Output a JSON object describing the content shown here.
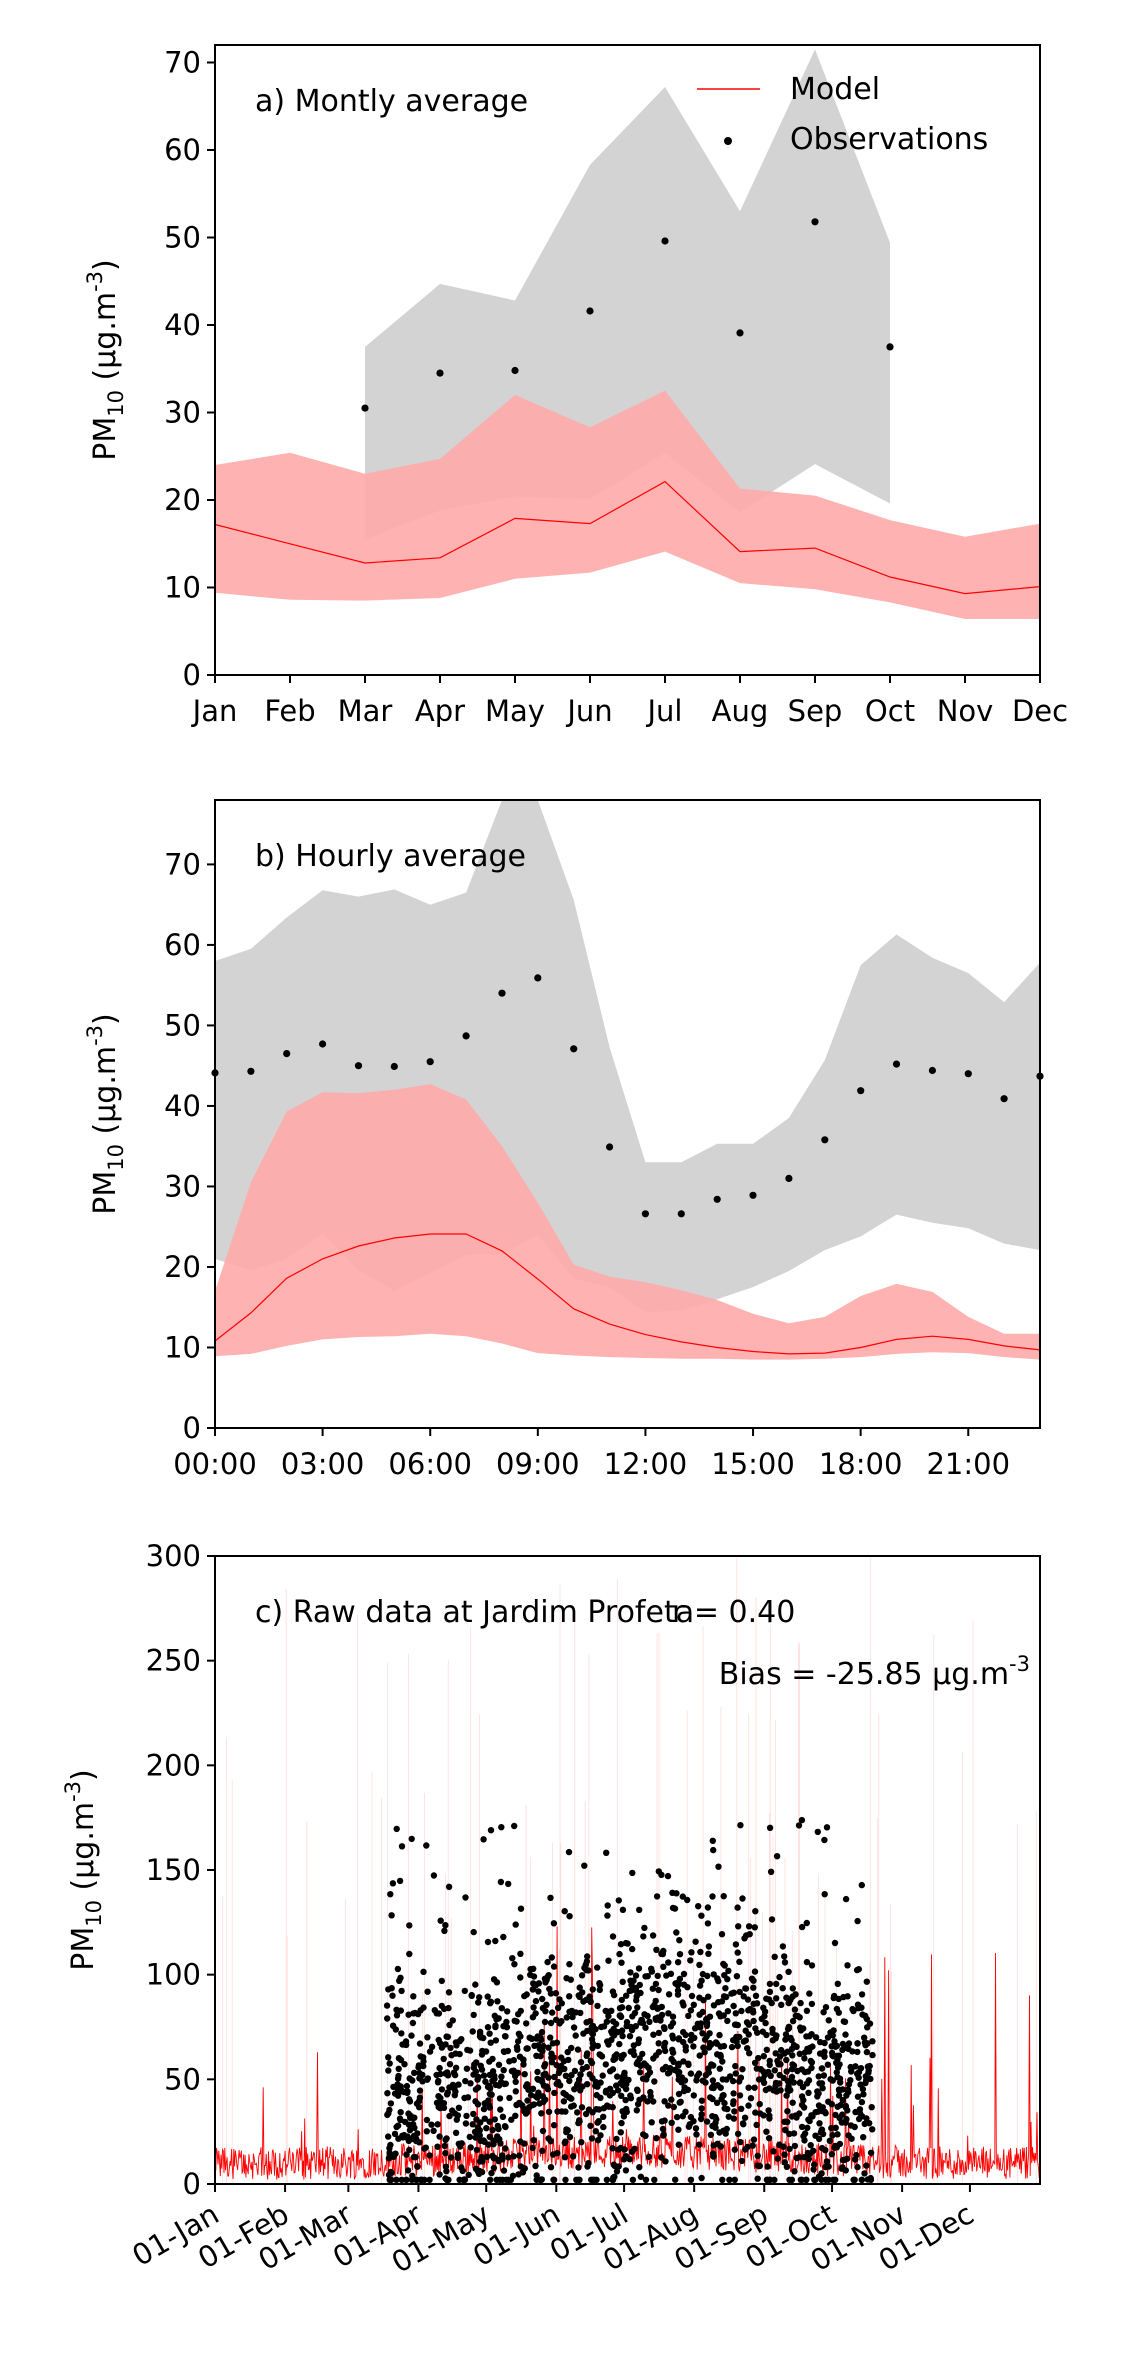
{
  "chart_data": [
    {
      "type": "line",
      "annotation": "a) Montly average",
      "ylabel": "PM_{10} (µg.m^{-3})",
      "ylim": [
        0,
        72
      ],
      "yticks": [
        0,
        10,
        20,
        30,
        40,
        50,
        60,
        70
      ],
      "categories": [
        "Jan",
        "Feb",
        "Mar",
        "Apr",
        "May",
        "Jun",
        "Jul",
        "Aug",
        "Sep",
        "Oct",
        "Nov",
        "Dec"
      ],
      "legend": {
        "placement": "top-right",
        "model": "Model",
        "observations": "Observations"
      },
      "series": [
        {
          "name": "Model",
          "kind": "line",
          "color": "#ff0000",
          "x": [
            0,
            1,
            2,
            3,
            4,
            5,
            6,
            7,
            8,
            9,
            10,
            11
          ],
          "values": [
            17.2,
            15.0,
            12.8,
            13.4,
            17.9,
            17.3,
            22.1,
            14.1,
            14.5,
            11.2,
            9.3,
            10.1
          ],
          "band_upper": [
            24.0,
            25.4,
            23.0,
            24.7,
            32.0,
            28.3,
            32.5,
            21.3,
            20.5,
            17.7,
            15.8,
            17.3
          ],
          "band_lower": [
            9.4,
            8.6,
            8.5,
            8.8,
            11.0,
            11.7,
            14.1,
            10.5,
            9.8,
            8.3,
            6.4,
            6.4
          ],
          "band_color": "#ffaaaa"
        },
        {
          "name": "Observations",
          "kind": "scatter",
          "color": "#000000",
          "x": [
            2,
            3,
            4,
            5,
            6,
            7,
            8,
            9
          ],
          "values": [
            30.5,
            34.5,
            34.8,
            41.6,
            49.6,
            39.1,
            51.8,
            37.5
          ],
          "band_upper": [
            37.5,
            44.7,
            42.8,
            58.3,
            67.2,
            53.0,
            71.5,
            49.4
          ],
          "band_lower": [
            15.5,
            18.8,
            20.4,
            20.1,
            25.4,
            18.6,
            24.1,
            19.6
          ],
          "band_color": "#d3d3d3"
        }
      ]
    },
    {
      "type": "line",
      "annotation": "b) Hourly average",
      "ylabel": "PM_{10} (µg.m^{-3})",
      "ylim": [
        0,
        78
      ],
      "yticks": [
        0,
        10,
        20,
        30,
        40,
        50,
        60,
        70
      ],
      "xlim": [
        0,
        23
      ],
      "xticks": [
        0,
        3,
        6,
        9,
        12,
        15,
        18,
        21
      ],
      "xtick_labels": [
        "00:00",
        "03:00",
        "06:00",
        "09:00",
        "12:00",
        "15:00",
        "18:00",
        "21:00"
      ],
      "series": [
        {
          "name": "Model",
          "kind": "line",
          "color": "#ff0000",
          "x": [
            0,
            1,
            2,
            3,
            4,
            5,
            6,
            7,
            8,
            9,
            10,
            11,
            12,
            13,
            14,
            15,
            16,
            17,
            18,
            19,
            20,
            21,
            22,
            23
          ],
          "values": [
            10.8,
            14.3,
            18.6,
            21.0,
            22.6,
            23.6,
            24.1,
            24.1,
            22.0,
            18.5,
            14.8,
            12.9,
            11.6,
            10.7,
            10.0,
            9.5,
            9.2,
            9.3,
            10.0,
            11.0,
            11.4,
            11.0,
            10.2,
            9.7
          ],
          "band_upper": [
            17.0,
            30.5,
            39.3,
            41.7,
            41.6,
            42.0,
            42.7,
            40.8,
            35.0,
            28.0,
            20.3,
            18.8,
            18.1,
            17.1,
            15.9,
            14.2,
            13.0,
            13.8,
            16.4,
            17.9,
            16.9,
            13.8,
            11.7,
            11.7
          ],
          "band_lower": [
            8.9,
            9.2,
            10.2,
            11.0,
            11.3,
            11.4,
            11.7,
            11.4,
            10.5,
            9.3,
            9.0,
            8.8,
            8.7,
            8.6,
            8.6,
            8.5,
            8.5,
            8.6,
            8.8,
            9.2,
            9.4,
            9.3,
            8.8,
            8.5
          ],
          "band_color": "#ffaaaa"
        },
        {
          "name": "Observations",
          "kind": "scatter",
          "color": "#000000",
          "x": [
            0,
            1,
            2,
            3,
            4,
            5,
            6,
            7,
            8,
            9,
            10,
            11,
            12,
            13,
            14,
            15,
            16,
            17,
            18,
            19,
            20,
            21,
            22,
            23
          ],
          "values": [
            44.1,
            44.3,
            46.5,
            47.7,
            45.0,
            44.9,
            45.5,
            48.7,
            54.0,
            55.9,
            47.1,
            34.9,
            26.6,
            26.6,
            28.4,
            28.9,
            31.0,
            35.8,
            41.9,
            45.2,
            44.4,
            44.0,
            40.9,
            43.7
          ],
          "band_upper": [
            58.0,
            59.5,
            63.4,
            66.8,
            66.0,
            66.9,
            65.0,
            66.5,
            79.0,
            79.0,
            65.6,
            47.3,
            33.0,
            33.0,
            35.3,
            35.3,
            38.5,
            45.7,
            57.5,
            61.3,
            58.4,
            56.5,
            52.9,
            57.8
          ],
          "band_lower": [
            21.0,
            19.6,
            21.0,
            24.2,
            19.6,
            17.0,
            19.3,
            21.5,
            21.6,
            24.0,
            18.6,
            17.5,
            14.4,
            14.6,
            16.0,
            17.5,
            19.5,
            22.1,
            23.8,
            26.5,
            25.5,
            24.8,
            22.9,
            22.1
          ],
          "band_color": "#d3d3d3"
        }
      ]
    },
    {
      "type": "scatter",
      "annotation": "c) Raw data at Jardim Profeta",
      "stat_r": "r = 0.40",
      "stat_bias": "Bias = -25.85 µg.m^{-3}",
      "ylabel": "PM_{10} (µg.m^{-3})",
      "ylim": [
        0,
        300
      ],
      "yticks": [
        0,
        50,
        100,
        150,
        200,
        250,
        300
      ],
      "xlim": [
        0,
        365
      ],
      "xticks": [
        0,
        31,
        59,
        90,
        120,
        151,
        181,
        212,
        243,
        273,
        304,
        334
      ],
      "xtick_labels": [
        "01-Jan",
        "01-Feb",
        "01-Mar",
        "01-Apr",
        "01-May",
        "01-Jun",
        "01-Jul",
        "01-Aug",
        "01-Sep",
        "01-Oct",
        "01-Nov",
        "01-Dec"
      ],
      "x_unit": "day of year",
      "series": [
        {
          "name": "Model",
          "kind": "hourly_line",
          "color": "#ff0000",
          "x_range": [
            0,
            365
          ],
          "typical_range": [
            2,
            40
          ],
          "peak_max": 127
        },
        {
          "name": "Observations",
          "kind": "hourly_scatter",
          "color": "#000000",
          "gaps": [
            [
              0,
              76
            ],
            [
              291,
              365
            ]
          ],
          "typical_range": [
            0,
            130
          ],
          "max": 174
        }
      ]
    }
  ]
}
